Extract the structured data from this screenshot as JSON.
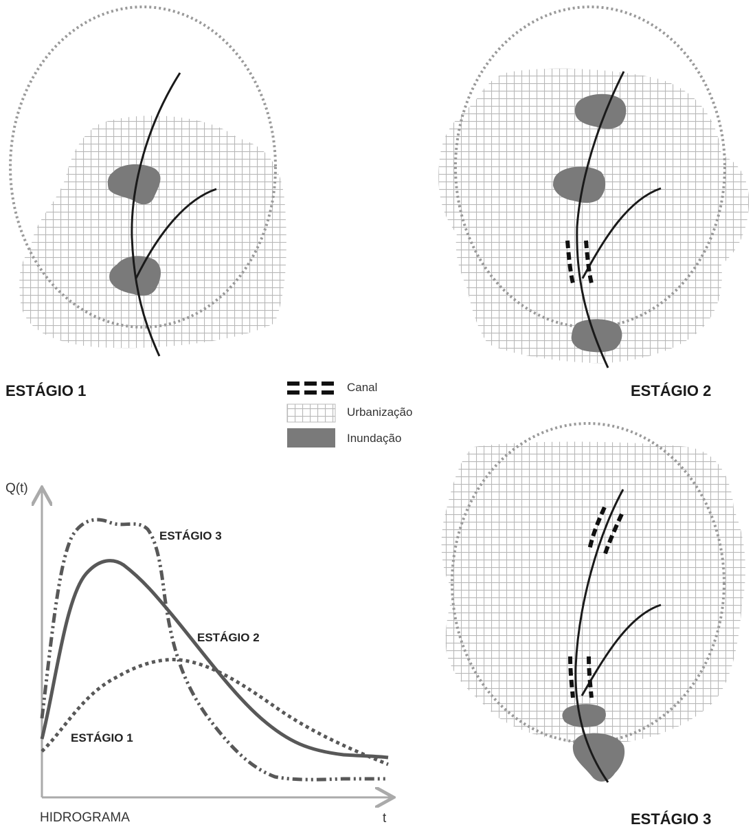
{
  "stages": {
    "stage1": "ESTÁGIO 1",
    "stage2": "ESTÁGIO 2",
    "stage3": "ESTÁGIO 3"
  },
  "legend": {
    "canal": "Canal",
    "urbanizacao": "Urbanização",
    "inundacao": "Inundação"
  },
  "hydrograph": {
    "ylabel": "Q(t)",
    "xlabel": "t",
    "title": "HIDROGRAMA",
    "curve_labels": {
      "stage1": "ESTÁGIO 1",
      "stage2": "ESTÁGIO 2",
      "stage3": "ESTÁGIO 3"
    }
  },
  "colors": {
    "grid": "#b8b8b8",
    "flood": "#7a7a7a",
    "river": "#1a1a1a",
    "canal": "#111111",
    "basin_outline": "#9a9a9a",
    "curve_stage1": "#585858",
    "curve_stage2": "#585858",
    "curve_stage3": "#585858"
  }
}
